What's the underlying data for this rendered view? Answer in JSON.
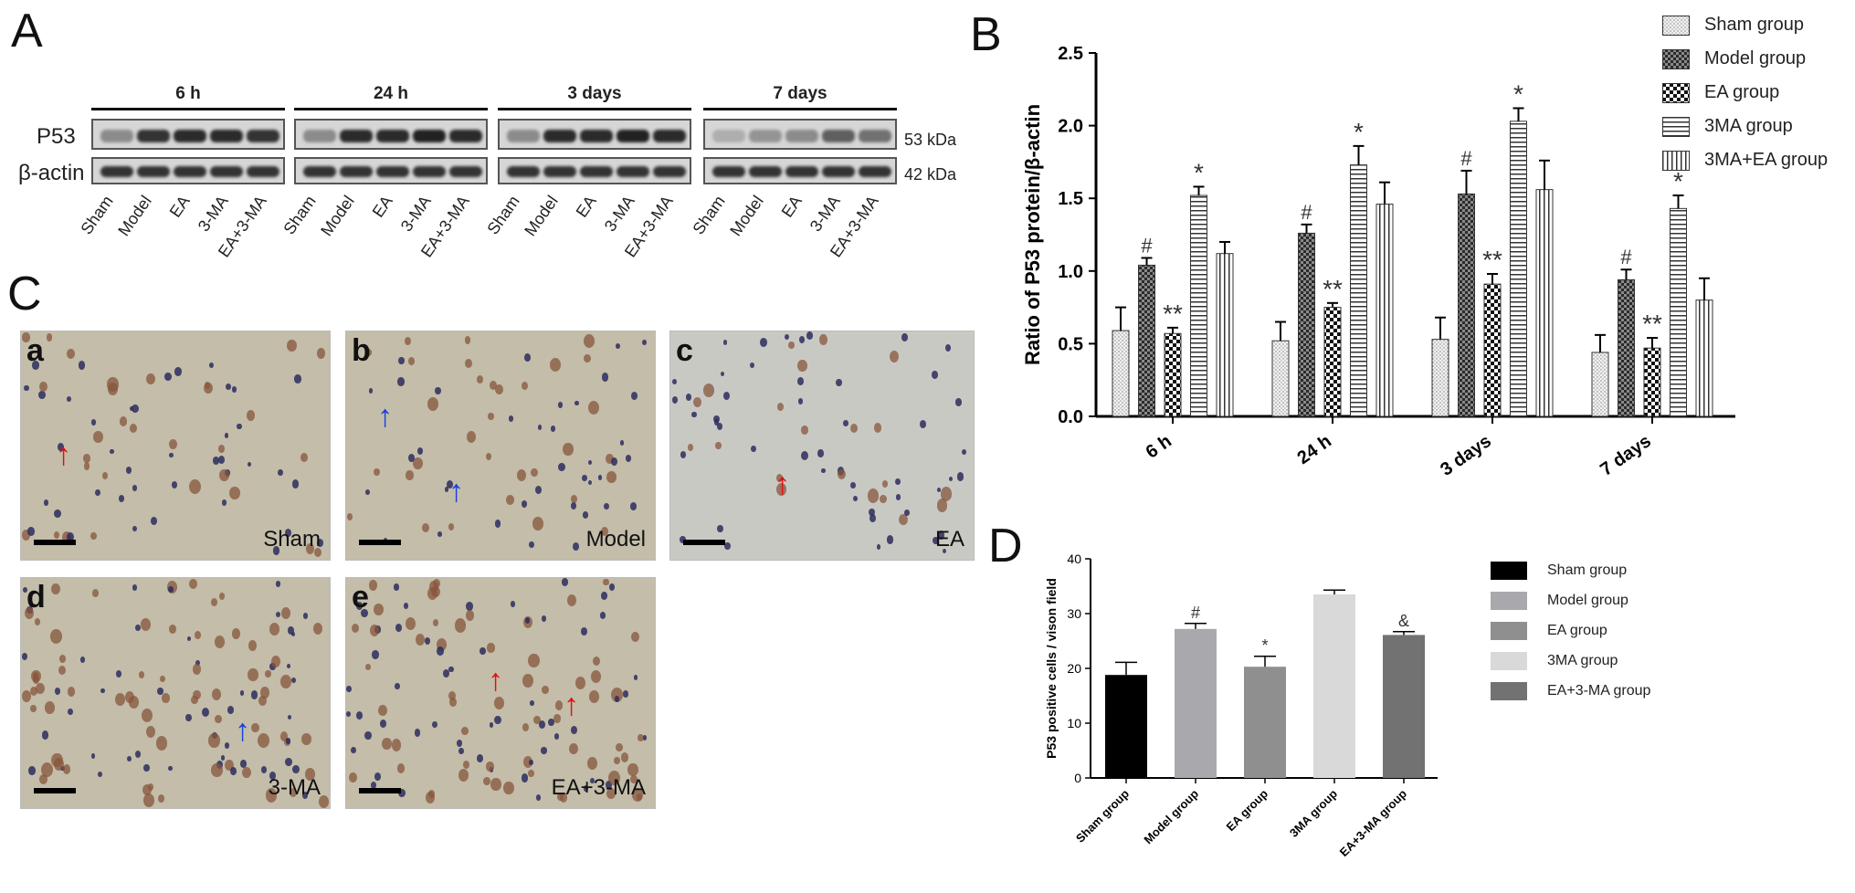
{
  "panels": {
    "a": "A",
    "b": "B",
    "c": "C",
    "d": "D"
  },
  "western_blot": {
    "groups": [
      "6 h",
      "24 h",
      "3 days",
      "7 days"
    ],
    "rows": [
      {
        "label": "P53",
        "kda": "53 kDa"
      },
      {
        "label": "β-actin",
        "kda": "42 kDa"
      }
    ],
    "lanes": [
      "Sham",
      "Model",
      "EA",
      "3-MA",
      "EA+3-MA"
    ],
    "p53_intensity": [
      [
        0.35,
        0.85,
        0.9,
        0.9,
        0.85
      ],
      [
        0.35,
        0.9,
        0.9,
        0.95,
        0.9
      ],
      [
        0.35,
        0.9,
        0.9,
        0.95,
        0.9
      ],
      [
        0.15,
        0.3,
        0.35,
        0.6,
        0.5
      ]
    ]
  },
  "micrographs": [
    {
      "corner": "a",
      "caption": "Sham",
      "arrows": [
        {
          "color": "#e01010"
        }
      ]
    },
    {
      "corner": "b",
      "caption": "Model",
      "arrows": [
        {
          "color": "#1a3fe0"
        },
        {
          "color": "#1a3fe0"
        }
      ]
    },
    {
      "corner": "c",
      "caption": "EA",
      "arrows": [
        {
          "color": "#e01010"
        }
      ]
    },
    {
      "corner": "d",
      "caption": "3-MA",
      "arrows": [
        {
          "color": "#1a3fe0"
        }
      ]
    },
    {
      "corner": "e",
      "caption": "EA+3-MA",
      "arrows": [
        {
          "color": "#e01010"
        },
        {
          "color": "#e01010"
        }
      ]
    }
  ],
  "chart_data": [
    {
      "type": "bar",
      "panel": "B",
      "ylabel": "Ratio of P53 protein/β-actin",
      "xlabel": "",
      "ylim": [
        0,
        2.5
      ],
      "yticks": [
        "0.0",
        "0.5",
        "1.0",
        "1.5",
        "2.0",
        "2.5"
      ],
      "categories": [
        "6 h",
        "24 h",
        "3 days",
        "7 days"
      ],
      "legend_position": "top-right",
      "series": [
        {
          "name": "Sham group",
          "pattern": "dots",
          "values": [
            0.59,
            0.52,
            0.53,
            0.44
          ],
          "errors": [
            0.16,
            0.13,
            0.15,
            0.12
          ],
          "marks": [
            "",
            "",
            "",
            ""
          ]
        },
        {
          "name": "Model group",
          "pattern": "dark-checker",
          "values": [
            1.04,
            1.26,
            1.53,
            0.94
          ],
          "errors": [
            0.05,
            0.06,
            0.16,
            0.07
          ],
          "marks": [
            "#",
            "#",
            "#",
            "#"
          ]
        },
        {
          "name": "EA group",
          "pattern": "checker",
          "values": [
            0.57,
            0.75,
            0.91,
            0.47
          ],
          "errors": [
            0.04,
            0.03,
            0.07,
            0.07
          ],
          "marks": [
            "**",
            "**",
            "**",
            "**"
          ]
        },
        {
          "name": "3MA group",
          "pattern": "horizontal",
          "values": [
            1.52,
            1.73,
            2.03,
            1.43
          ],
          "errors": [
            0.06,
            0.13,
            0.09,
            0.09
          ],
          "marks": [
            "*",
            "*",
            "*",
            "*"
          ]
        },
        {
          "name": "3MA+EA group",
          "pattern": "vertical",
          "values": [
            1.12,
            1.46,
            1.56,
            0.8
          ],
          "errors": [
            0.08,
            0.15,
            0.2,
            0.15
          ],
          "marks": [
            "",
            "",
            "",
            ""
          ]
        }
      ]
    },
    {
      "type": "bar",
      "panel": "D",
      "ylabel": "P53 positive cells / vison field",
      "xlabel": "",
      "ylim": [
        0,
        40
      ],
      "yticks": [
        "0",
        "10",
        "20",
        "30",
        "40"
      ],
      "categories": [
        "Sham group",
        "Model group",
        "EA group",
        "3MA group",
        "EA+3-MA group"
      ],
      "values": [
        18.8,
        27.2,
        20.3,
        33.5,
        26.1
      ],
      "errors": [
        2.3,
        1.0,
        1.9,
        0.8,
        0.6
      ],
      "marks": [
        "",
        "#",
        "*",
        "",
        "&"
      ],
      "colors": [
        "#000000",
        "#a9a9ad",
        "#8f8f8f",
        "#d9d9d9",
        "#727272"
      ],
      "legend": [
        "Sham group",
        "Model group",
        "EA group",
        "3MA group",
        "EA+3-MA group"
      ]
    }
  ]
}
